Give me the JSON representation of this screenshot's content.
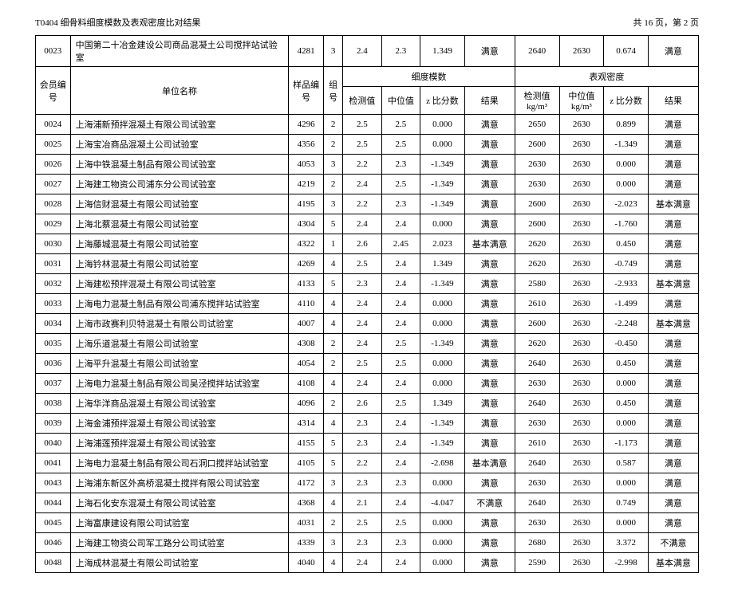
{
  "page_header": {
    "title": "T0404 细骨料细度模数及表观密度比对结果",
    "pagination": "共 16 页，第 2 页"
  },
  "columns": {
    "member_id": "会员编号",
    "org_name": "单位名称",
    "sample_id": "样品编号",
    "group_id": "组号",
    "fineness_group": "细度模数",
    "density_group": "表观密度",
    "detect": "检测值",
    "median": "中位值",
    "zscore": "z 比分数",
    "result": "结果",
    "detect_kg": "检测值",
    "median_kg": "中位值",
    "unit_kg": "kg/m³"
  },
  "top_row": {
    "id": "0023",
    "name": "中国第二十冶金建设公司商品混凝土公司搅拌站试验室",
    "sample": "4281",
    "group": "3",
    "f_det": "2.4",
    "f_med": "2.3",
    "f_z": "1.349",
    "f_res": "满意",
    "d_det": "2640",
    "d_med": "2630",
    "d_z": "0.674",
    "d_res": "满意"
  },
  "rows": [
    {
      "id": "0024",
      "name": "上海浦新预拌混凝土有限公司试验室",
      "sample": "4296",
      "group": "2",
      "f_det": "2.5",
      "f_med": "2.5",
      "f_z": "0.000",
      "f_res": "满意",
      "d_det": "2650",
      "d_med": "2630",
      "d_z": "0.899",
      "d_res": "满意"
    },
    {
      "id": "0025",
      "name": "上海宝冶商品混凝土公司试验室",
      "sample": "4356",
      "group": "2",
      "f_det": "2.5",
      "f_med": "2.5",
      "f_z": "0.000",
      "f_res": "满意",
      "d_det": "2600",
      "d_med": "2630",
      "d_z": "-1.349",
      "d_res": "满意"
    },
    {
      "id": "0026",
      "name": "上海中铁混凝土制品有限公司试验室",
      "sample": "4053",
      "group": "3",
      "f_det": "2.2",
      "f_med": "2.3",
      "f_z": "-1.349",
      "f_res": "满意",
      "d_det": "2630",
      "d_med": "2630",
      "d_z": "0.000",
      "d_res": "满意"
    },
    {
      "id": "0027",
      "name": "上海建工物资公司浦东分公司试验室",
      "sample": "4219",
      "group": "2",
      "f_det": "2.4",
      "f_med": "2.5",
      "f_z": "-1.349",
      "f_res": "满意",
      "d_det": "2630",
      "d_med": "2630",
      "d_z": "0.000",
      "d_res": "满意"
    },
    {
      "id": "0028",
      "name": "上海信财混凝土有限公司试验室",
      "sample": "4195",
      "group": "3",
      "f_det": "2.2",
      "f_med": "2.3",
      "f_z": "-1.349",
      "f_res": "满意",
      "d_det": "2600",
      "d_med": "2630",
      "d_z": "-2.023",
      "d_res": "基本满意"
    },
    {
      "id": "0029",
      "name": "上海北蔡混凝土有限公司试验室",
      "sample": "4304",
      "group": "5",
      "f_det": "2.4",
      "f_med": "2.4",
      "f_z": "0.000",
      "f_res": "满意",
      "d_det": "2600",
      "d_med": "2630",
      "d_z": "-1.760",
      "d_res": "满意"
    },
    {
      "id": "0030",
      "name": "上海藤城混凝土有限公司试验室",
      "sample": "4322",
      "group": "1",
      "f_det": "2.6",
      "f_med": "2.45",
      "f_z": "2.023",
      "f_res": "基本满意",
      "d_det": "2620",
      "d_med": "2630",
      "d_z": "0.450",
      "d_res": "满意"
    },
    {
      "id": "0031",
      "name": "上海钤林混凝土有限公司试验室",
      "sample": "4269",
      "group": "4",
      "f_det": "2.5",
      "f_med": "2.4",
      "f_z": "1.349",
      "f_res": "满意",
      "d_det": "2620",
      "d_med": "2630",
      "d_z": "-0.749",
      "d_res": "满意"
    },
    {
      "id": "0032",
      "name": "上海建松预拌混凝土有限公司试验室",
      "sample": "4133",
      "group": "5",
      "f_det": "2.3",
      "f_med": "2.4",
      "f_z": "-1.349",
      "f_res": "满意",
      "d_det": "2580",
      "d_med": "2630",
      "d_z": "-2.933",
      "d_res": "基本满意"
    },
    {
      "id": "0033",
      "name": "上海电力混凝土制品有限公司浦东搅拌站试验室",
      "sample": "4110",
      "group": "4",
      "f_det": "2.4",
      "f_med": "2.4",
      "f_z": "0.000",
      "f_res": "满意",
      "d_det": "2610",
      "d_med": "2630",
      "d_z": "-1.499",
      "d_res": "满意"
    },
    {
      "id": "0034",
      "name": "上海市政赛利贝特混凝土有限公司试验室",
      "sample": "4007",
      "group": "4",
      "f_det": "2.4",
      "f_med": "2.4",
      "f_z": "0.000",
      "f_res": "满意",
      "d_det": "2600",
      "d_med": "2630",
      "d_z": "-2.248",
      "d_res": "基本满意"
    },
    {
      "id": "0035",
      "name": "上海乐道混凝土有限公司试验室",
      "sample": "4308",
      "group": "2",
      "f_det": "2.4",
      "f_med": "2.5",
      "f_z": "-1.349",
      "f_res": "满意",
      "d_det": "2620",
      "d_med": "2630",
      "d_z": "-0.450",
      "d_res": "满意"
    },
    {
      "id": "0036",
      "name": "上海平升混凝土有限公司试验室",
      "sample": "4054",
      "group": "2",
      "f_det": "2.5",
      "f_med": "2.5",
      "f_z": "0.000",
      "f_res": "满意",
      "d_det": "2640",
      "d_med": "2630",
      "d_z": "0.450",
      "d_res": "满意"
    },
    {
      "id": "0037",
      "name": "上海电力混凝土制品有限公司吴泾搅拌站试验室",
      "sample": "4108",
      "group": "4",
      "f_det": "2.4",
      "f_med": "2.4",
      "f_z": "0.000",
      "f_res": "满意",
      "d_det": "2630",
      "d_med": "2630",
      "d_z": "0.000",
      "d_res": "满意"
    },
    {
      "id": "0038",
      "name": "上海华洋商品混凝土有限公司试验室",
      "sample": "4096",
      "group": "2",
      "f_det": "2.6",
      "f_med": "2.5",
      "f_z": "1.349",
      "f_res": "满意",
      "d_det": "2640",
      "d_med": "2630",
      "d_z": "0.450",
      "d_res": "满意"
    },
    {
      "id": "0039",
      "name": "上海金浦预拌混凝土有限公司试验室",
      "sample": "4314",
      "group": "4",
      "f_det": "2.3",
      "f_med": "2.4",
      "f_z": "-1.349",
      "f_res": "满意",
      "d_det": "2630",
      "d_med": "2630",
      "d_z": "0.000",
      "d_res": "满意"
    },
    {
      "id": "0040",
      "name": "上海浦莲预拌混凝土有限公司试验室",
      "sample": "4155",
      "group": "5",
      "f_det": "2.3",
      "f_med": "2.4",
      "f_z": "-1.349",
      "f_res": "满意",
      "d_det": "2610",
      "d_med": "2630",
      "d_z": "-1.173",
      "d_res": "满意"
    },
    {
      "id": "0041",
      "name": "上海电力混凝土制品有限公司石洞口搅拌站试验室",
      "sample": "4105",
      "group": "5",
      "f_det": "2.2",
      "f_med": "2.4",
      "f_z": "-2.698",
      "f_res": "基本满意",
      "d_det": "2640",
      "d_med": "2630",
      "d_z": "0.587",
      "d_res": "满意"
    },
    {
      "id": "0043",
      "name": "上海浦东新区外高桥混凝土搅拌有限公司试验室",
      "sample": "4172",
      "group": "3",
      "f_det": "2.3",
      "f_med": "2.3",
      "f_z": "0.000",
      "f_res": "满意",
      "d_det": "2630",
      "d_med": "2630",
      "d_z": "0.000",
      "d_res": "满意"
    },
    {
      "id": "0044",
      "name": "上海石化安东混凝土有限公司试验室",
      "sample": "4368",
      "group": "4",
      "f_det": "2.1",
      "f_med": "2.4",
      "f_z": "-4.047",
      "f_res": "不满意",
      "d_det": "2640",
      "d_med": "2630",
      "d_z": "0.749",
      "d_res": "满意"
    },
    {
      "id": "0045",
      "name": "上海富康建设有限公司试验室",
      "sample": "4031",
      "group": "2",
      "f_det": "2.5",
      "f_med": "2.5",
      "f_z": "0.000",
      "f_res": "满意",
      "d_det": "2630",
      "d_med": "2630",
      "d_z": "0.000",
      "d_res": "满意"
    },
    {
      "id": "0046",
      "name": "上海建工物资公司军工路分公司试验室",
      "sample": "4339",
      "group": "3",
      "f_det": "2.3",
      "f_med": "2.3",
      "f_z": "0.000",
      "f_res": "满意",
      "d_det": "2680",
      "d_med": "2630",
      "d_z": "3.372",
      "d_res": "不满意"
    },
    {
      "id": "0048",
      "name": "上海成林混凝土有限公司试验室",
      "sample": "4040",
      "group": "4",
      "f_det": "2.4",
      "f_med": "2.4",
      "f_z": "0.000",
      "f_res": "满意",
      "d_det": "2590",
      "d_med": "2630",
      "d_z": "-2.998",
      "d_res": "基本满意"
    }
  ]
}
